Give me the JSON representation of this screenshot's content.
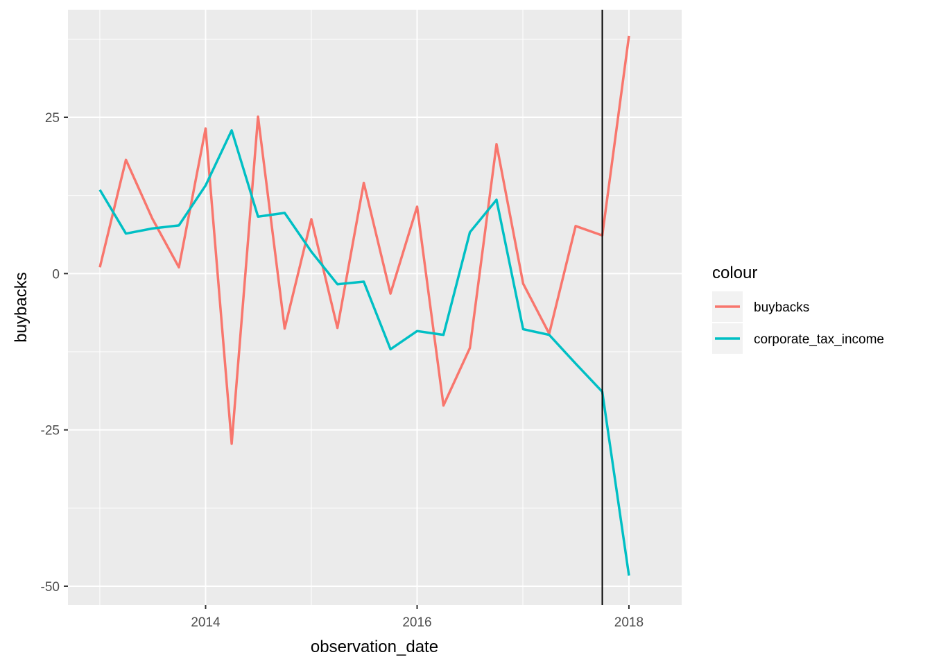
{
  "chart_data": {
    "type": "line",
    "xlabel": "observation_date",
    "ylabel": "buybacks",
    "xlim": [
      "2012-09-13",
      "2018-07-02"
    ],
    "ylim": [
      -53.0,
      42.2
    ],
    "x_ticks": [
      {
        "date": "2014-01-01",
        "label": "2014"
      },
      {
        "date": "2016-01-01",
        "label": "2016"
      },
      {
        "date": "2018-01-01",
        "label": "2018"
      }
    ],
    "y_ticks": [
      {
        "value": 25,
        "label": "25"
      },
      {
        "value": 0,
        "label": "0"
      },
      {
        "value": -25,
        "label": "-25"
      },
      {
        "value": -50,
        "label": "-50"
      }
    ],
    "grid": true,
    "vline": {
      "date": "2017-10-01",
      "color": "#000000"
    },
    "legend": {
      "title": "colour",
      "position": "right"
    },
    "series": [
      {
        "name": "buybacks",
        "color": "#F8766D",
        "points": [
          {
            "date": "2013-01-01",
            "value": 1.0
          },
          {
            "date": "2013-04-01",
            "value": 18.2
          },
          {
            "date": "2013-07-01",
            "value": 8.8
          },
          {
            "date": "2013-10-01",
            "value": 1.0
          },
          {
            "date": "2014-01-01",
            "value": 23.2
          },
          {
            "date": "2014-04-01",
            "value": -27.2
          },
          {
            "date": "2014-07-01",
            "value": 25.1
          },
          {
            "date": "2014-10-01",
            "value": -8.8
          },
          {
            "date": "2015-01-01",
            "value": 8.7
          },
          {
            "date": "2015-04-01",
            "value": -8.7
          },
          {
            "date": "2015-07-01",
            "value": 14.5
          },
          {
            "date": "2015-10-01",
            "value": -3.2
          },
          {
            "date": "2016-01-01",
            "value": 10.7
          },
          {
            "date": "2016-04-01",
            "value": -21.1
          },
          {
            "date": "2016-07-01",
            "value": -11.9
          },
          {
            "date": "2016-10-01",
            "value": 20.7
          },
          {
            "date": "2017-01-01",
            "value": -1.6
          },
          {
            "date": "2017-04-01",
            "value": -9.6
          },
          {
            "date": "2017-07-01",
            "value": 7.6
          },
          {
            "date": "2017-10-01",
            "value": 6.1
          },
          {
            "date": "2018-01-01",
            "value": 38.0
          }
        ]
      },
      {
        "name": "corporate_tax_income",
        "color": "#00BFC4",
        "points": [
          {
            "date": "2013-01-01",
            "value": 13.4
          },
          {
            "date": "2013-04-01",
            "value": 6.4
          },
          {
            "date": "2013-07-01",
            "value": 7.2
          },
          {
            "date": "2013-10-01",
            "value": 7.7
          },
          {
            "date": "2014-01-01",
            "value": 14.1
          },
          {
            "date": "2014-04-01",
            "value": 22.9
          },
          {
            "date": "2014-07-01",
            "value": 9.1
          },
          {
            "date": "2014-10-01",
            "value": 9.7
          },
          {
            "date": "2015-01-01",
            "value": 3.5
          },
          {
            "date": "2015-04-01",
            "value": -1.7
          },
          {
            "date": "2015-07-01",
            "value": -1.3
          },
          {
            "date": "2015-10-01",
            "value": -12.1
          },
          {
            "date": "2016-01-01",
            "value": -9.2
          },
          {
            "date": "2016-04-01",
            "value": -9.8
          },
          {
            "date": "2016-07-01",
            "value": 6.6
          },
          {
            "date": "2016-10-01",
            "value": 11.8
          },
          {
            "date": "2017-01-01",
            "value": -8.9
          },
          {
            "date": "2017-04-01",
            "value": -9.8
          },
          {
            "date": "2017-07-01",
            "value": -14.4
          },
          {
            "date": "2017-10-01",
            "value": -18.9
          },
          {
            "date": "2018-01-01",
            "value": -48.3
          }
        ]
      }
    ]
  }
}
